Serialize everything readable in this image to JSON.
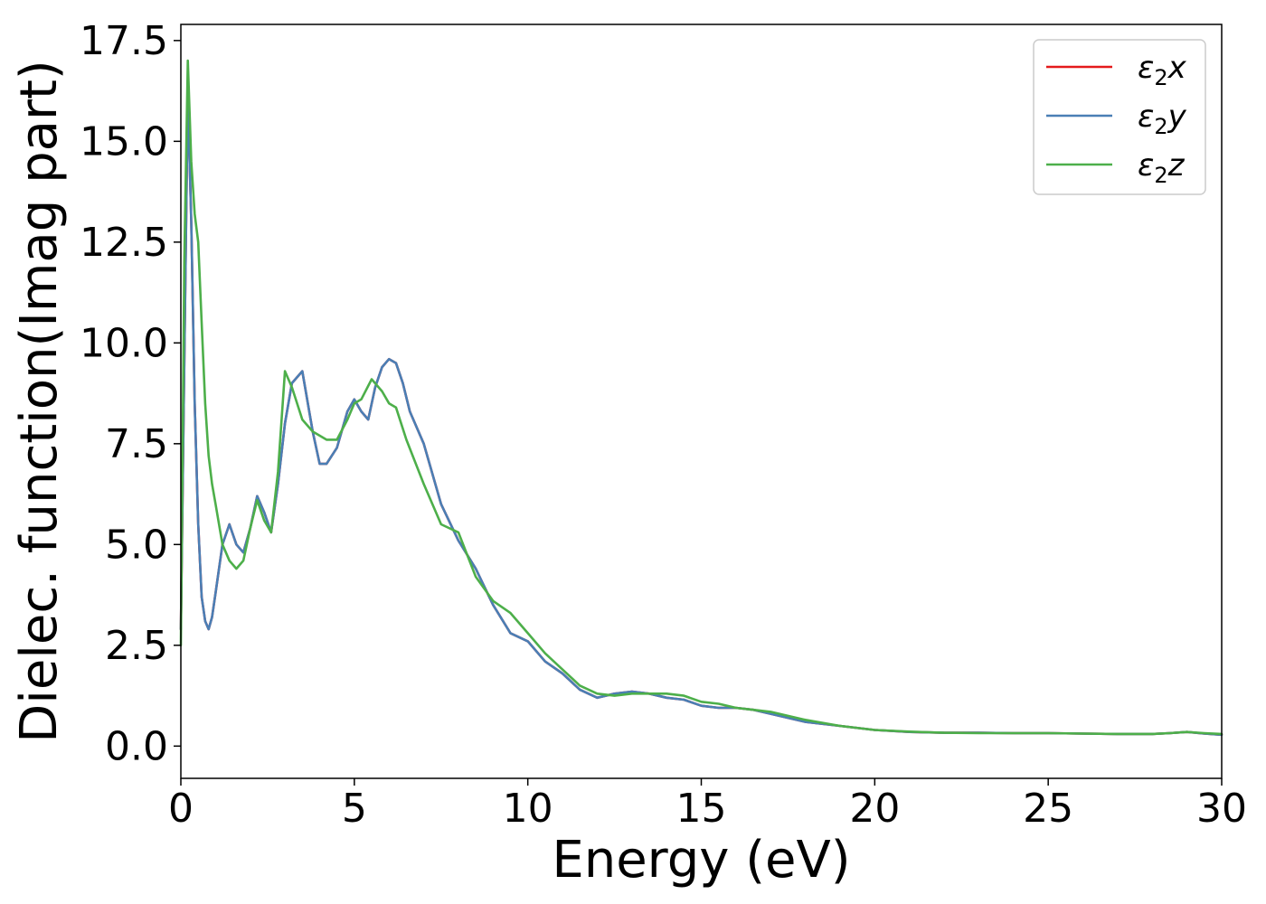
{
  "chart_data": {
    "type": "line",
    "title": "",
    "xlabel": "Energy (eV)",
    "ylabel": "Dielec. function(Imag part)",
    "xlim": [
      0,
      30
    ],
    "ylim": [
      -0.8,
      17.9
    ],
    "xticks": [
      0,
      5,
      10,
      15,
      20,
      25,
      30
    ],
    "xtick_labels": [
      "0",
      "5",
      "10",
      "15",
      "20",
      "25",
      "30"
    ],
    "yticks": [
      0,
      2.5,
      5,
      7.5,
      10,
      12.5,
      15,
      17.5
    ],
    "ytick_labels": [
      "0.0",
      "2.5",
      "5.0",
      "7.5",
      "10.0",
      "12.5",
      "15.0",
      "17.5"
    ],
    "grid": false,
    "legend_position": "top-right",
    "series": [
      {
        "name": "ε2x",
        "legend": {
          "base": "ε",
          "sub": "2",
          "suffix": "x"
        },
        "color": "#e41a1c",
        "x": [
          0,
          0.1,
          0.2,
          0.3,
          0.4,
          0.5,
          0.6,
          0.7,
          0.8,
          0.9,
          1.0,
          1.2,
          1.4,
          1.6,
          1.8,
          2.0,
          2.2,
          2.4,
          2.6,
          2.8,
          3.0,
          3.2,
          3.5,
          3.8,
          4.0,
          4.2,
          4.5,
          4.8,
          5.0,
          5.2,
          5.4,
          5.6,
          5.8,
          6.0,
          6.2,
          6.4,
          6.6,
          7.0,
          7.5,
          8.0,
          8.5,
          9.0,
          9.5,
          10.0,
          10.5,
          11.0,
          11.5,
          12.0,
          12.5,
          13.0,
          13.5,
          14.0,
          14.5,
          15.0,
          15.5,
          16.0,
          16.5,
          17.0,
          18.0,
          19.0,
          20.0,
          21.0,
          22.0,
          23.0,
          24.0,
          25.0,
          26.0,
          27.0,
          28.0,
          28.5,
          29.0,
          29.5,
          30.0
        ],
        "values": [
          2.9,
          9.5,
          16.2,
          13.0,
          8.5,
          5.5,
          3.7,
          3.1,
          2.9,
          3.2,
          3.8,
          5.0,
          5.5,
          5.0,
          4.8,
          5.4,
          6.2,
          5.8,
          5.3,
          6.5,
          8.0,
          9.0,
          9.3,
          7.8,
          7.0,
          7.0,
          7.4,
          8.3,
          8.6,
          8.3,
          8.1,
          8.9,
          9.4,
          9.6,
          9.5,
          9.0,
          8.3,
          7.5,
          6.0,
          5.1,
          4.4,
          3.5,
          2.8,
          2.6,
          2.1,
          1.8,
          1.4,
          1.2,
          1.3,
          1.35,
          1.3,
          1.2,
          1.15,
          1.0,
          0.95,
          0.95,
          0.9,
          0.8,
          0.6,
          0.5,
          0.4,
          0.35,
          0.33,
          0.33,
          0.32,
          0.32,
          0.31,
          0.3,
          0.3,
          0.32,
          0.35,
          0.31,
          0.28
        ]
      },
      {
        "name": "ε2y",
        "legend": {
          "base": "ε",
          "sub": "2",
          "suffix": "y"
        },
        "color": "#4a7fb5",
        "x": [
          0,
          0.1,
          0.2,
          0.3,
          0.4,
          0.5,
          0.6,
          0.7,
          0.8,
          0.9,
          1.0,
          1.2,
          1.4,
          1.6,
          1.8,
          2.0,
          2.2,
          2.4,
          2.6,
          2.8,
          3.0,
          3.2,
          3.5,
          3.8,
          4.0,
          4.2,
          4.5,
          4.8,
          5.0,
          5.2,
          5.4,
          5.6,
          5.8,
          6.0,
          6.2,
          6.4,
          6.6,
          7.0,
          7.5,
          8.0,
          8.5,
          9.0,
          9.5,
          10.0,
          10.5,
          11.0,
          11.5,
          12.0,
          12.5,
          13.0,
          13.5,
          14.0,
          14.5,
          15.0,
          15.5,
          16.0,
          16.5,
          17.0,
          18.0,
          19.0,
          20.0,
          21.0,
          22.0,
          23.0,
          24.0,
          25.0,
          26.0,
          27.0,
          28.0,
          28.5,
          29.0,
          29.5,
          30.0
        ],
        "values": [
          2.9,
          9.5,
          16.2,
          13.0,
          8.5,
          5.5,
          3.7,
          3.1,
          2.9,
          3.2,
          3.8,
          5.0,
          5.5,
          5.0,
          4.8,
          5.4,
          6.2,
          5.8,
          5.3,
          6.5,
          8.0,
          9.0,
          9.3,
          7.8,
          7.0,
          7.0,
          7.4,
          8.3,
          8.6,
          8.3,
          8.1,
          8.9,
          9.4,
          9.6,
          9.5,
          9.0,
          8.3,
          7.5,
          6.0,
          5.1,
          4.4,
          3.5,
          2.8,
          2.6,
          2.1,
          1.8,
          1.4,
          1.2,
          1.3,
          1.35,
          1.3,
          1.2,
          1.15,
          1.0,
          0.95,
          0.95,
          0.9,
          0.8,
          0.6,
          0.5,
          0.4,
          0.35,
          0.33,
          0.33,
          0.32,
          0.32,
          0.31,
          0.3,
          0.3,
          0.32,
          0.35,
          0.31,
          0.28
        ]
      },
      {
        "name": "ε2z",
        "legend": {
          "base": "ε",
          "sub": "2",
          "suffix": "z"
        },
        "color": "#4daf4a",
        "x": [
          0,
          0.1,
          0.2,
          0.3,
          0.4,
          0.5,
          0.6,
          0.7,
          0.8,
          0.9,
          1.0,
          1.2,
          1.4,
          1.6,
          1.8,
          2.0,
          2.2,
          2.4,
          2.6,
          2.8,
          3.0,
          3.2,
          3.5,
          3.8,
          4.0,
          4.2,
          4.5,
          4.8,
          5.0,
          5.2,
          5.5,
          5.8,
          6.0,
          6.2,
          6.5,
          7.0,
          7.5,
          8.0,
          8.5,
          9.0,
          9.5,
          10.0,
          10.5,
          11.0,
          11.5,
          12.0,
          12.5,
          13.0,
          13.5,
          14.0,
          14.5,
          15.0,
          15.5,
          16.0,
          16.5,
          17.0,
          18.0,
          19.0,
          20.0,
          21.0,
          22.0,
          23.0,
          24.0,
          25.0,
          26.0,
          27.0,
          28.0,
          28.5,
          29.0,
          29.5,
          30.0
        ],
        "values": [
          2.5,
          12.0,
          17.0,
          14.5,
          13.2,
          12.5,
          10.5,
          8.5,
          7.2,
          6.5,
          6.0,
          5.0,
          4.6,
          4.4,
          4.6,
          5.4,
          6.1,
          5.6,
          5.3,
          6.8,
          9.3,
          8.9,
          8.1,
          7.8,
          7.7,
          7.6,
          7.6,
          8.1,
          8.5,
          8.6,
          9.1,
          8.8,
          8.5,
          8.4,
          7.6,
          6.5,
          5.5,
          5.3,
          4.2,
          3.6,
          3.3,
          2.8,
          2.3,
          1.9,
          1.5,
          1.3,
          1.25,
          1.3,
          1.3,
          1.3,
          1.25,
          1.1,
          1.05,
          0.95,
          0.9,
          0.85,
          0.65,
          0.5,
          0.4,
          0.36,
          0.33,
          0.32,
          0.32,
          0.32,
          0.31,
          0.3,
          0.3,
          0.32,
          0.35,
          0.32,
          0.3
        ]
      }
    ]
  }
}
